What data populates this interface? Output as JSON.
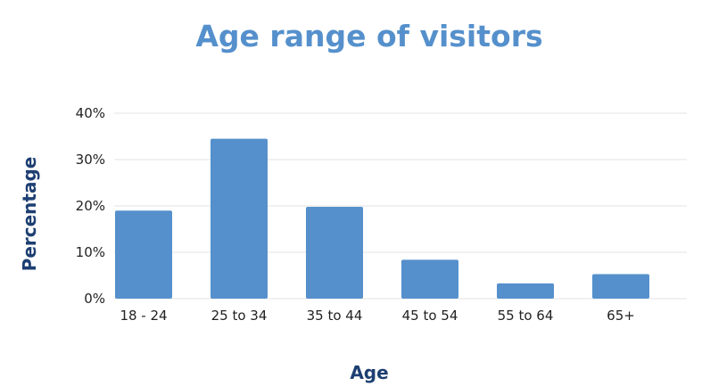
{
  "chart_data": {
    "type": "bar",
    "title": "Age range of visitors",
    "xlabel": "Age",
    "ylabel": "Percentage",
    "categories": [
      "18 - 24",
      "25 to 34",
      "35 to 44",
      "45 to 54",
      "55 to 64",
      "65+"
    ],
    "values": [
      19,
      34.5,
      19.8,
      8.4,
      3.3,
      5.3
    ],
    "ylim": [
      0,
      40
    ],
    "yticks": [
      "0%",
      "10%",
      "20%",
      "30%",
      "40%"
    ],
    "grid": true,
    "legend": "none",
    "bar_color": "#5590cc"
  },
  "colors": {
    "title": "#5590cc",
    "axis_title": "#1d3f72",
    "bar": "#5590cc"
  }
}
